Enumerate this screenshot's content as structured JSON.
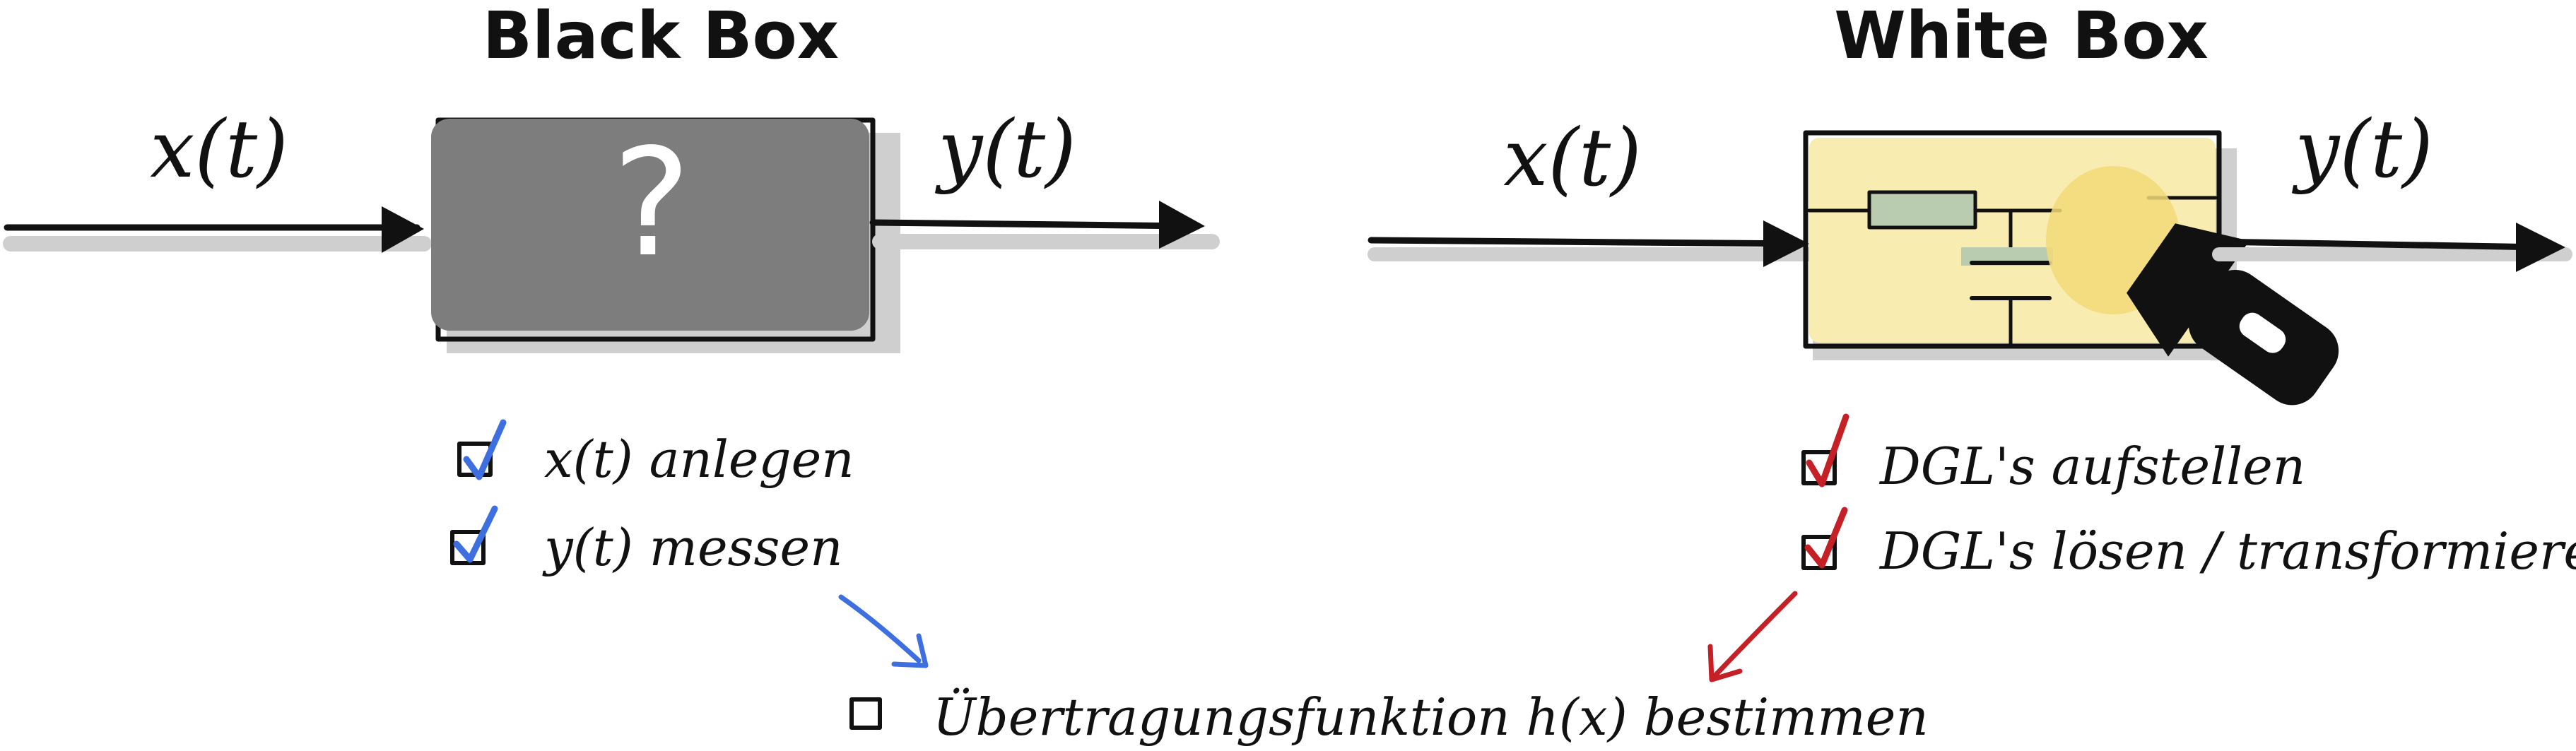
{
  "black_box": {
    "title": "Black Box",
    "symbol": "?",
    "input_label": "x(t)",
    "output_label": "y(t)",
    "fill_color": "#7d7d7d",
    "tasks": [
      {
        "label": "x(t)  anlegen",
        "checked": true,
        "check_color": "#3d6fe0"
      },
      {
        "label": "y(t)  messen",
        "checked": true,
        "check_color": "#3d6fe0"
      }
    ]
  },
  "white_box": {
    "title": "White Box",
    "input_label": "x(t)",
    "output_label": "y(t)",
    "fill_color": "#f9ecb1",
    "tasks": [
      {
        "label": "DGL's aufstellen",
        "checked": true,
        "check_color": "#c42026"
      },
      {
        "label": "DGL's lösen / transformieren",
        "checked": true,
        "check_color": "#c42026"
      }
    ]
  },
  "result": {
    "label": "Übertragungsfunktion h(x) bestimmen",
    "checked": false
  },
  "colors": {
    "ink": "#111111",
    "blue_accent": "#3d6fe0",
    "red_accent": "#c42026",
    "shadow": "#cfcfcf",
    "circuit_green": "#b9ccb0",
    "flashlight_glow": "#f3db79"
  }
}
